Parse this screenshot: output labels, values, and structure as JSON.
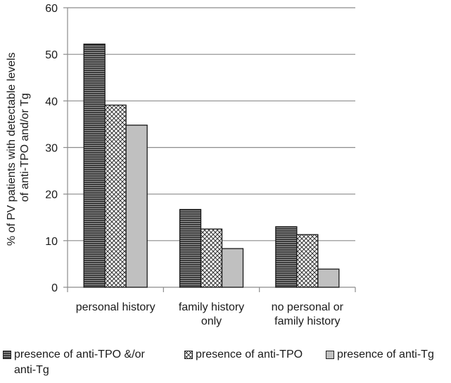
{
  "chart_data": {
    "type": "bar",
    "ylabel_lines": [
      "% of PV patients with detectable levels",
      "of  anti-TPO and/or Tg"
    ],
    "xlabel": "",
    "ylim": [
      0,
      60
    ],
    "yticks": [
      0,
      10,
      20,
      30,
      40,
      50,
      60
    ],
    "grid": true,
    "legend_position": "bottom",
    "categories": [
      [
        "personal history"
      ],
      [
        "family history",
        "only"
      ],
      [
        "no personal or",
        "family history"
      ]
    ],
    "series": [
      {
        "name": "presence of anti-TPO &/or anti-Tg",
        "pattern": "horizontal-stripes",
        "color": "#4a4a4a",
        "values": [
          52.2,
          16.7,
          13.0
        ]
      },
      {
        "name": "presence of anti-TPO",
        "pattern": "crosshatch",
        "color": "#ffffff",
        "values": [
          39.1,
          12.5,
          11.3
        ]
      },
      {
        "name": "presence of anti-Tg",
        "pattern": "solid",
        "color": "#c0c0c0",
        "values": [
          34.8,
          8.3,
          3.9
        ]
      }
    ]
  },
  "legend": {
    "item1_line1": "presence of anti-TPO &/or",
    "item1_line2": "anti-Tg",
    "item2": "presence of anti-TPO",
    "item3": "presence of anti-Tg"
  }
}
